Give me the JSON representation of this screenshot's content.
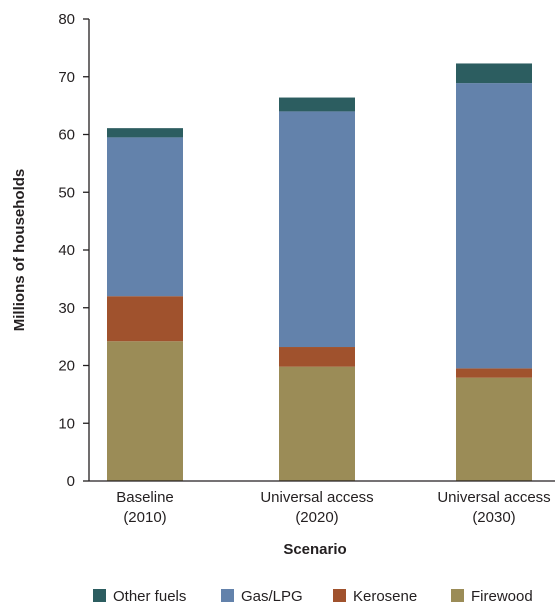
{
  "chart_data": {
    "type": "bar",
    "stacked": true,
    "title": "",
    "xlabel": "Scenario",
    "ylabel": "Millions of households",
    "ylim": [
      0,
      80
    ],
    "yticks": [
      0,
      10,
      20,
      30,
      40,
      50,
      60,
      70,
      80
    ],
    "categories": [
      [
        "Baseline",
        "(2010)"
      ],
      [
        "Universal access",
        "(2020)"
      ],
      [
        "Universal access",
        "(2030)"
      ]
    ],
    "series": [
      {
        "name": "Firewood",
        "color": "#9b8c57",
        "values": [
          24.2,
          19.8,
          17.9
        ]
      },
      {
        "name": "Kerosene",
        "color": "#a0522d",
        "values": [
          7.8,
          3.4,
          1.6
        ]
      },
      {
        "name": "Gas/LPG",
        "color": "#6382ab",
        "values": [
          27.5,
          40.8,
          49.4
        ]
      },
      {
        "name": "Other fuels",
        "color": "#2c5d60",
        "values": [
          1.6,
          2.4,
          3.4
        ]
      }
    ],
    "legend": {
      "placement": "bottom",
      "order": [
        "Other fuels",
        "Gas/LPG",
        "Kerosene",
        "Firewood"
      ]
    },
    "grid": false
  }
}
